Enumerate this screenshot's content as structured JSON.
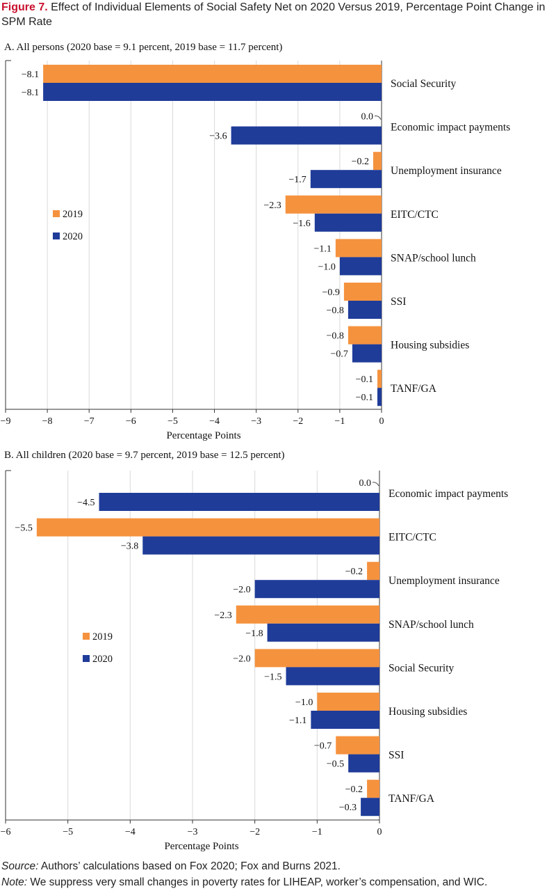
{
  "figure": {
    "label": "Figure 7.",
    "title": " Effect of Individual Elements of Social Safety Net on 2020 Versus 2019, Percentage Point Change in SPM Rate"
  },
  "colors": {
    "2019": "#f5923e",
    "2020": "#1f3c99",
    "grid": "#d9d9d9",
    "axis": "#333333"
  },
  "chart_data": [
    {
      "type": "bar",
      "orientation": "horizontal",
      "title": "A. All persons (2020 base = 9.1 percent, 2019 base = 11.7 percent)",
      "xlabel": "Percentage Points",
      "xlim": [
        -9,
        0
      ],
      "xticks": [
        "−9",
        "−8",
        "−7",
        "−6",
        "−5",
        "−4",
        "−3",
        "−2",
        "−1",
        "0"
      ],
      "categories": [
        "Social Security",
        "Economic impact payments",
        "Unemployment insurance",
        "EITC/CTC",
        "SNAP/school lunch",
        "SSI",
        "Housing subsidies",
        "TANF/GA"
      ],
      "series": [
        {
          "name": "2019",
          "values": [
            -8.1,
            0.0,
            -0.2,
            -2.3,
            -1.1,
            -0.9,
            -0.8,
            -0.1
          ],
          "labels": [
            "−8.1",
            "0.0",
            "−0.2",
            "−2.3",
            "−1.1",
            "−0.9",
            "−0.8",
            "−0.1"
          ]
        },
        {
          "name": "2020",
          "values": [
            -8.1,
            -3.6,
            -1.7,
            -1.6,
            -1.0,
            -0.8,
            -0.7,
            -0.1
          ],
          "labels": [
            "−8.1",
            "−3.6",
            "−1.7",
            "−1.6",
            "−1.0",
            "−0.8",
            "−0.7",
            "−0.1"
          ]
        }
      ],
      "legend": [
        "2019",
        "2020"
      ],
      "grid": true
    },
    {
      "type": "bar",
      "orientation": "horizontal",
      "title": "B. All children (2020 base = 9.7 percent, 2019 base = 12.5 percent)",
      "xlabel": "Percentage Points",
      "xlim": [
        -6,
        0
      ],
      "xticks": [
        "−6",
        "−5",
        "−4",
        "−3",
        "−2",
        "−1",
        "0"
      ],
      "categories": [
        "Economic impact payments",
        "EITC/CTC",
        "Unemployment insurance",
        "SNAP/school lunch",
        "Social Security",
        "Housing subsidies",
        "SSI",
        "TANF/GA"
      ],
      "series": [
        {
          "name": "2019",
          "values": [
            0.0,
            -5.5,
            -0.2,
            -2.3,
            -2.0,
            -1.0,
            -0.7,
            -0.2
          ],
          "labels": [
            "0.0",
            "−5.5",
            "−0.2",
            "−2.3",
            "−2.0",
            "−1.0",
            "−0.7",
            "−0.2"
          ]
        },
        {
          "name": "2020",
          "values": [
            -4.5,
            -3.8,
            -2.0,
            -1.8,
            -1.5,
            -1.1,
            -0.5,
            -0.3
          ],
          "labels": [
            "−4.5",
            "−3.8",
            "−2.0",
            "−1.8",
            "−1.5",
            "−1.1",
            "−0.5",
            "−0.3"
          ]
        }
      ],
      "legend": [
        "2019",
        "2020"
      ],
      "grid": true
    }
  ],
  "notes": {
    "source_label": "Source:",
    "source_text": " Authors’ calculations based on Fox 2020; Fox and Burns 2021.",
    "note_label": "Note:",
    "note_text": " We suppress very small changes in poverty rates for LIHEAP, worker’s compensation, and WIC."
  }
}
